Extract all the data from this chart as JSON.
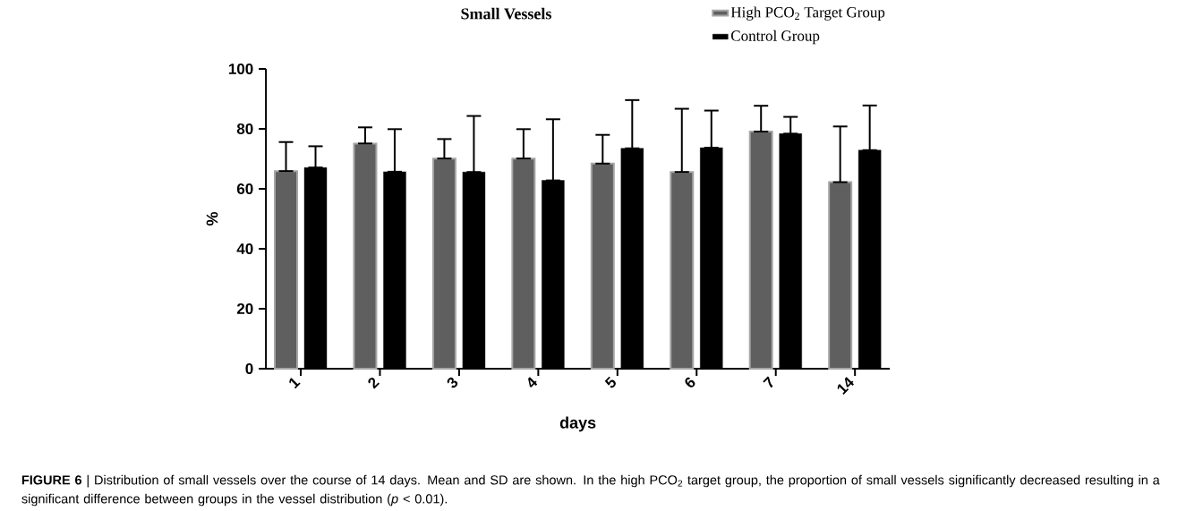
{
  "chart_data": {
    "type": "bar",
    "title": "Small Vessels",
    "xlabel": "days",
    "ylabel": "%",
    "categories": [
      "1",
      "2",
      "3",
      "4",
      "5",
      "6",
      "7",
      "14"
    ],
    "series": [
      {
        "name": "High PCO$_{2}$ Target Group",
        "color": "#5f5f5f",
        "values": [
          65.9,
          75.1,
          70.1,
          70.1,
          68.4,
          65.6,
          79.1,
          62.2
        ],
        "errors": [
          [
            65.9,
            75.6
          ],
          [
            75.1,
            80.5
          ],
          [
            70.1,
            76.6
          ],
          [
            70.1,
            79.9
          ],
          [
            68.4,
            78.0
          ],
          [
            65.6,
            86.7
          ],
          [
            79.1,
            87.7
          ],
          [
            62.2,
            80.8
          ]
        ]
      },
      {
        "name": "Control Group",
        "color": "#000000",
        "values": [
          67.1,
          65.7,
          65.6,
          62.8,
          73.5,
          73.7,
          78.4,
          72.9
        ],
        "errors": [
          [
            67.1,
            74.2
          ],
          [
            65.7,
            79.9
          ],
          [
            65.6,
            84.3
          ],
          [
            62.8,
            83.2
          ],
          [
            73.5,
            89.6
          ],
          [
            73.7,
            86.1
          ],
          [
            78.4,
            84.0
          ],
          [
            72.9,
            87.8
          ]
        ]
      }
    ],
    "ylim": [
      0,
      100
    ],
    "yticks": [
      0,
      20,
      40,
      60,
      80,
      100
    ],
    "grid": false,
    "legend": "top right",
    "annotations": [
      "**FIGURE 6** | Distribution of small vessels over the course of 14 days. Mean and SD are shown. In the high PCO$_{2}$ target group, the proportion of small vessels significantly decreased resulting in a significant difference between groups in the vessel distribution (*p* < 0.01)."
    ]
  }
}
